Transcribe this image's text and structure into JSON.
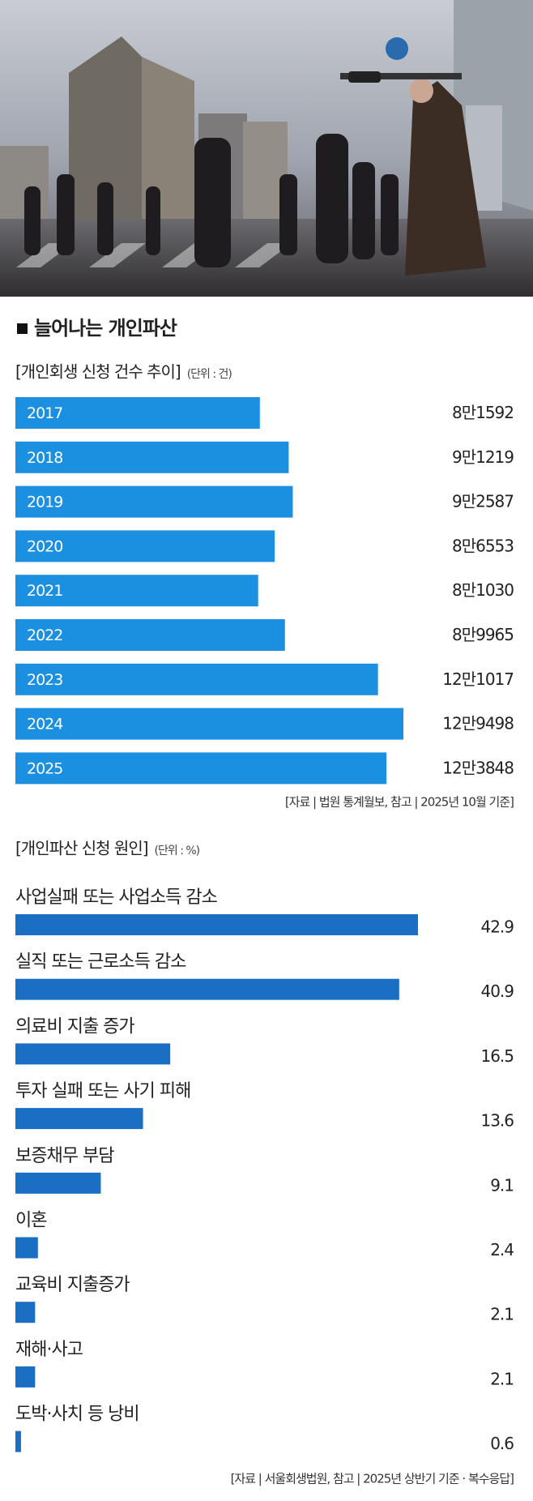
{
  "title": "늘어나는 개인파산",
  "chart_data": [
    {
      "type": "bar",
      "subtitle": "[개인회생 신청 건수 추이]",
      "unit": "(단위 : 건)",
      "color": "#1b8fe0",
      "categories": [
        "2017",
        "2018",
        "2019",
        "2020",
        "2021",
        "2022",
        "2023",
        "2024",
        "2025"
      ],
      "values": [
        81592,
        91219,
        92587,
        86553,
        81030,
        89965,
        121017,
        129498,
        123848
      ],
      "value_labels": [
        "8만1592",
        "9만1219",
        "9만2587",
        "8만6553",
        "8만1030",
        "8만9965",
        "12만1017",
        "12만9498",
        "12만3848"
      ],
      "source": "[자료 | 법원 통계월보, 참고 | 2025년 10월 기준]"
    },
    {
      "type": "bar",
      "subtitle": "[개인파산 신청 원인]",
      "unit": "(단위 : %)",
      "color": "#1a6fc4",
      "categories": [
        "사업실패 또는 사업소득 감소",
        "실직 또는 근로소득 감소",
        "의료비 지출 증가",
        "투자 실패 또는 사기 피해",
        "보증채무 부담",
        "이혼",
        "교육비 지출증가",
        "재해·사고",
        "도박·사치 등 낭비"
      ],
      "values": [
        42.9,
        40.9,
        16.5,
        13.6,
        9.1,
        2.4,
        2.1,
        2.1,
        0.6
      ],
      "source": "[자료 | 서울회생법원, 참고 | 2025년 상반기 기준 · 복수응답]"
    }
  ]
}
